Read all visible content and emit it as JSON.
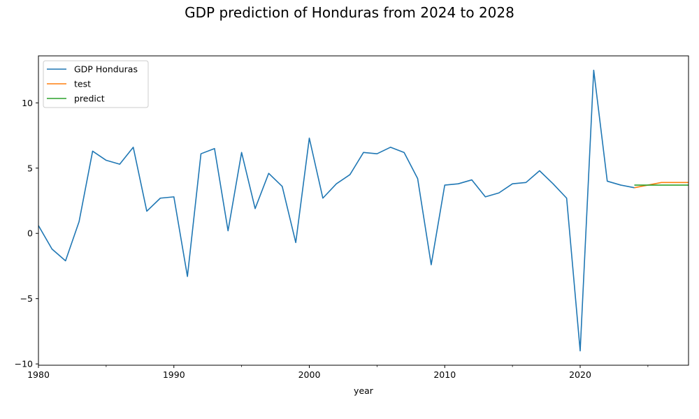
{
  "chart_data": {
    "type": "line",
    "title": "GDP prediction of Honduras from 2024 to 2028",
    "xlabel": "year",
    "ylabel": "",
    "xlim": [
      1980,
      2028
    ],
    "ylim": [
      -10.1,
      13.6
    ],
    "x_ticks": [
      1980,
      1990,
      2000,
      2010,
      2020
    ],
    "x_minor_ticks": [
      1985,
      1995,
      2005,
      2015,
      2025
    ],
    "y_ticks": [
      10,
      5,
      0,
      -5,
      -10
    ],
    "y_tick_labels": [
      "10",
      "5",
      "0",
      "−5",
      "−10"
    ],
    "grid": false,
    "legend_position": "top-left",
    "series": [
      {
        "name": "GDP Honduras",
        "color": "#1f77b4",
        "x": [
          1980,
          1981,
          1982,
          1983,
          1984,
          1985,
          1986,
          1987,
          1988,
          1989,
          1990,
          1991,
          1992,
          1993,
          1994,
          1995,
          1996,
          1997,
          1998,
          1999,
          2000,
          2001,
          2002,
          2003,
          2004,
          2005,
          2006,
          2007,
          2008,
          2009,
          2010,
          2011,
          2012,
          2013,
          2014,
          2015,
          2016,
          2017,
          2018,
          2019,
          2020,
          2021,
          2022,
          2023,
          2024
        ],
        "values": [
          0.6,
          -1.2,
          -2.1,
          0.9,
          6.3,
          5.6,
          5.3,
          6.6,
          1.7,
          2.7,
          2.8,
          -3.3,
          6.1,
          6.5,
          0.2,
          6.2,
          1.9,
          4.6,
          3.6,
          -0.7,
          7.3,
          2.7,
          3.8,
          4.5,
          6.2,
          6.1,
          6.6,
          6.2,
          4.2,
          -2.4,
          3.7,
          3.8,
          4.1,
          2.8,
          3.1,
          3.8,
          3.9,
          4.8,
          3.8,
          2.7,
          -9.0,
          12.5,
          4.0,
          3.7,
          3.5
        ]
      },
      {
        "name": "test",
        "color": "#ff7f0e",
        "x": [
          2024,
          2025,
          2026,
          2027,
          2028
        ],
        "values": [
          3.5,
          3.7,
          3.9,
          3.9,
          3.9
        ]
      },
      {
        "name": "predict",
        "color": "#2ca02c",
        "x": [
          2024,
          2025,
          2026,
          2027,
          2028
        ],
        "values": [
          3.7,
          3.7,
          3.7,
          3.7,
          3.7
        ]
      }
    ]
  }
}
